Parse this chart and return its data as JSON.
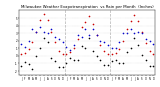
{
  "title": "Milwaukee Weather Evapotranspiration  vs Rain per Month  (Inches)",
  "title_fontsize": 2.8,
  "background_color": "#ffffff",
  "months_36": [
    "J",
    "F",
    "M",
    "A",
    "M",
    "J",
    "J",
    "A",
    "S",
    "O",
    "N",
    "D",
    "J",
    "F",
    "M",
    "A",
    "M",
    "J",
    "J",
    "A",
    "S",
    "O",
    "N",
    "D",
    "J",
    "F",
    "M",
    "A",
    "M",
    "J",
    "J",
    "A",
    "S",
    "O",
    "N",
    "D"
  ],
  "et_values": [
    0.3,
    0.4,
    0.9,
    1.8,
    3.2,
    4.8,
    5.5,
    4.8,
    3.2,
    1.8,
    0.7,
    0.3,
    0.3,
    0.5,
    1.0,
    2.2,
    3.8,
    4.5,
    5.2,
    4.2,
    2.8,
    1.5,
    0.6,
    0.3,
    0.3,
    0.4,
    0.9,
    2.0,
    3.5,
    4.6,
    5.4,
    4.6,
    3.1,
    1.7,
    0.7,
    0.3
  ],
  "rain_values": [
    1.6,
    1.2,
    2.0,
    3.5,
    3.2,
    3.8,
    3.2,
    3.0,
    3.5,
    2.5,
    2.2,
    1.8,
    1.2,
    0.8,
    1.5,
    2.8,
    2.5,
    3.5,
    2.8,
    3.5,
    2.8,
    2.0,
    1.8,
    1.5,
    1.0,
    1.0,
    1.8,
    3.0,
    3.0,
    3.5,
    3.0,
    3.2,
    3.0,
    2.2,
    2.0,
    1.6
  ],
  "diff_values": [
    -1.3,
    -0.8,
    -1.1,
    -1.7,
    0.0,
    1.0,
    2.3,
    1.8,
    -0.3,
    -0.7,
    -1.5,
    -1.5,
    -0.9,
    -0.3,
    -0.5,
    -0.6,
    1.3,
    1.0,
    2.4,
    0.7,
    0.0,
    -0.5,
    -1.2,
    -1.2,
    -0.7,
    -0.6,
    -0.9,
    -1.0,
    0.5,
    1.1,
    2.4,
    1.4,
    0.1,
    -0.5,
    -1.3,
    -1.3
  ],
  "et_color": "#cc0000",
  "rain_color": "#0000cc",
  "diff_color": "#000000",
  "year_dividers": [
    11.5,
    23.5
  ],
  "ylim": [
    -2.5,
    6.0
  ],
  "yticks": [
    -2,
    -1,
    0,
    1,
    2,
    3,
    4,
    5
  ],
  "ytick_labels": [
    "-2",
    "-1",
    "0",
    "1",
    "2",
    "3",
    "4",
    "5"
  ]
}
